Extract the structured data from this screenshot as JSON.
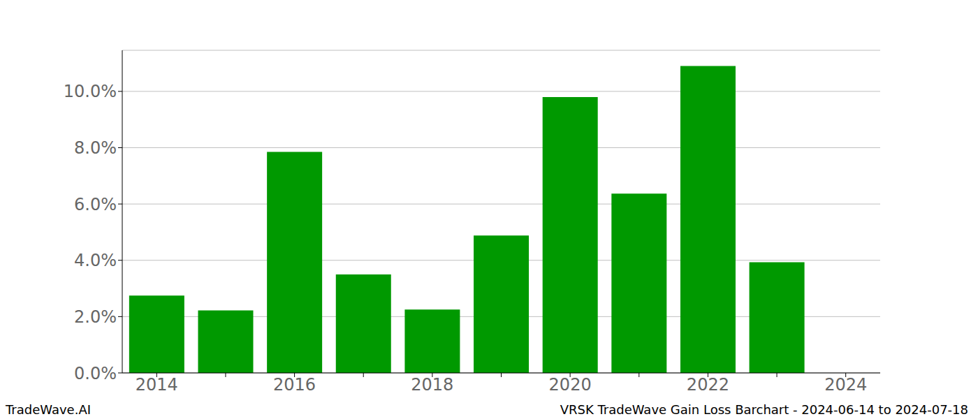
{
  "chart_data": {
    "type": "bar",
    "categories": [
      "2014",
      null,
      "2016",
      null,
      "2018",
      null,
      "2020",
      null,
      "2022",
      null,
      "2024"
    ],
    "values": [
      2.75,
      2.22,
      7.85,
      3.5,
      2.25,
      4.88,
      9.8,
      6.37,
      10.9,
      3.93,
      null
    ],
    "color": "#009900",
    "ylim": [
      0,
      11.46
    ],
    "yticks": [
      {
        "value": 0,
        "label": "0.0%"
      },
      {
        "value": 2,
        "label": "2.0%"
      },
      {
        "value": 4,
        "label": "4.0%"
      },
      {
        "value": 6,
        "label": "6.0%"
      },
      {
        "value": 8,
        "label": "8.0%"
      },
      {
        "value": 10,
        "label": "10.0%"
      }
    ],
    "grid": true,
    "annotations": [
      "TradeWave.AI",
      "VRSK TradeWave Gain Loss Barchart - 2024-06-14 to 2024-07-18"
    ]
  }
}
